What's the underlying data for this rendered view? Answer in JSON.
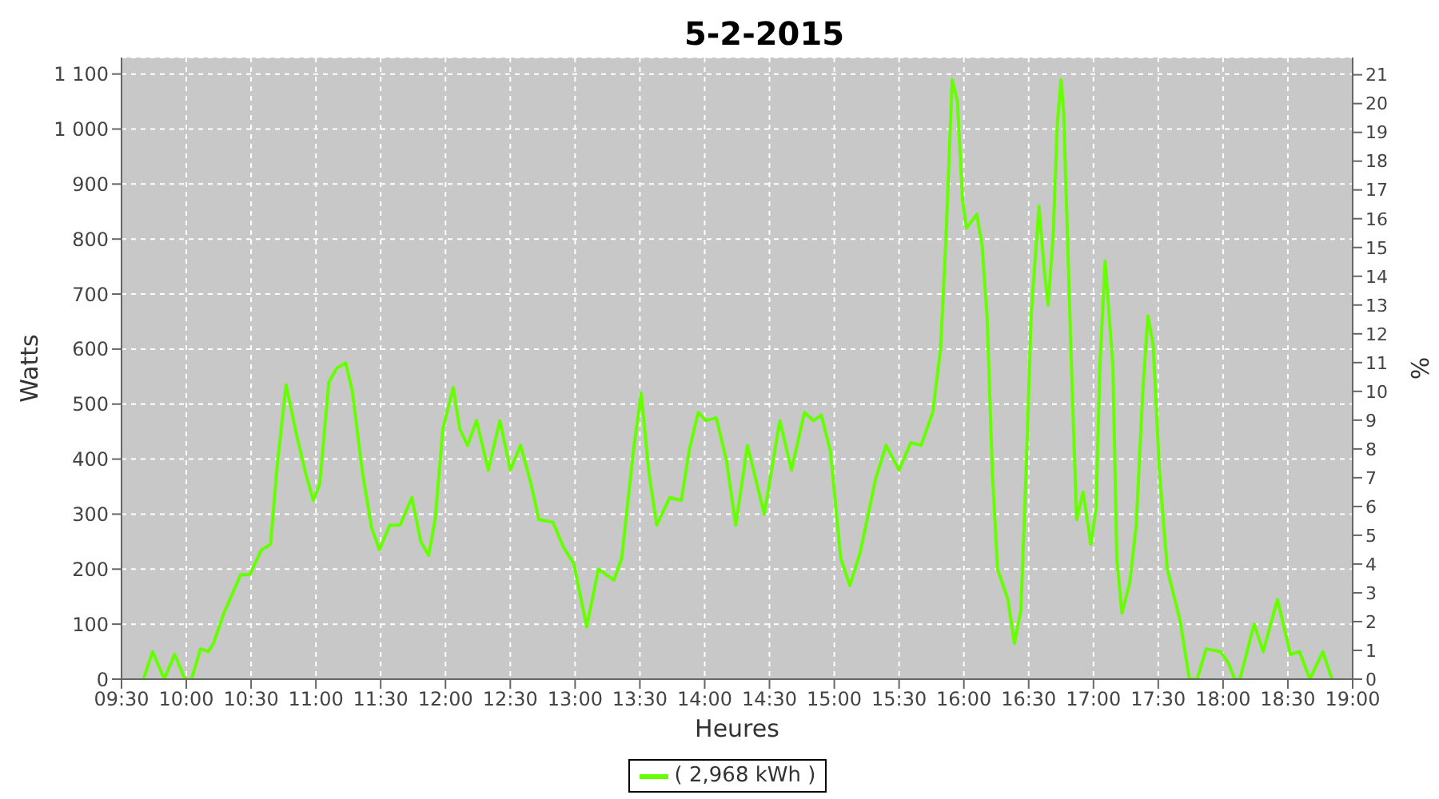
{
  "chart_data": {
    "type": "line",
    "title": "5-2-2015",
    "xlabel": "Heures",
    "ylabel": "Watts",
    "y2label": "%",
    "x": [
      9.67,
      9.74,
      9.83,
      9.91,
      9.99,
      10.04,
      10.11,
      10.17,
      10.21,
      10.29,
      10.42,
      10.49,
      10.58,
      10.65,
      10.7,
      10.77,
      10.85,
      10.92,
      10.98,
      11.03,
      11.1,
      11.16,
      11.23,
      11.28,
      11.36,
      11.43,
      11.49,
      11.57,
      11.65,
      11.74,
      11.81,
      11.87,
      11.92,
      11.98,
      12.06,
      12.11,
      12.17,
      12.24,
      12.33,
      12.42,
      12.5,
      12.58,
      12.66,
      12.72,
      12.83,
      12.91,
      12.99,
      13.09,
      13.18,
      13.3,
      13.36,
      13.45,
      13.51,
      13.57,
      13.63,
      13.73,
      13.82,
      13.88,
      13.95,
      14.01,
      14.09,
      14.17,
      14.24,
      14.33,
      14.46,
      14.58,
      14.67,
      14.77,
      14.84,
      14.9,
      14.97,
      15.05,
      15.12,
      15.2,
      15.32,
      15.4,
      15.5,
      15.59,
      15.67,
      15.73,
      15.76,
      15.82,
      15.86,
      15.91,
      15.95,
      15.99,
      16.02,
      16.1,
      16.14,
      16.18,
      16.22,
      16.26,
      16.34,
      16.39,
      16.44,
      16.48,
      16.52,
      16.58,
      16.62,
      16.65,
      16.69,
      16.72,
      16.75,
      16.77,
      16.83,
      16.87,
      16.92,
      16.98,
      17.02,
      17.05,
      17.09,
      17.15,
      17.18,
      17.22,
      17.28,
      17.33,
      17.38,
      17.42,
      17.46,
      17.51,
      17.57,
      17.67,
      17.74,
      17.8,
      17.87,
      17.98,
      18.04,
      18.09,
      18.13,
      18.24,
      18.31,
      18.42,
      18.52,
      18.59,
      18.67,
      18.77,
      18.84
    ],
    "series": [
      {
        "name": "( 2,968 kWh )",
        "color": "#66ff00",
        "values": [
          0,
          50,
          0,
          45,
          0,
          0,
          55,
          50,
          65,
          120,
          190,
          190,
          235,
          245,
          385,
          535,
          445,
          375,
          325,
          355,
          540,
          565,
          575,
          525,
          375,
          275,
          235,
          280,
          280,
          330,
          250,
          225,
          290,
          455,
          530,
          455,
          425,
          470,
          380,
          470,
          380,
          425,
          355,
          290,
          285,
          240,
          210,
          95,
          200,
          180,
          220,
          415,
          520,
          375,
          280,
          330,
          325,
          415,
          485,
          470,
          475,
          395,
          280,
          425,
          300,
          470,
          380,
          485,
          470,
          480,
          415,
          220,
          170,
          230,
          365,
          425,
          380,
          430,
          425,
          465,
          485,
          600,
          790,
          1090,
          1050,
          870,
          820,
          845,
          790,
          655,
          375,
          200,
          145,
          65,
          125,
          375,
          665,
          860,
          745,
          680,
          810,
          1005,
          1090,
          1030,
          570,
          290,
          340,
          245,
          310,
          570,
          760,
          570,
          220,
          120,
          175,
          280,
          520,
          660,
          610,
          375,
          200,
          105,
          0,
          0,
          55,
          50,
          30,
          0,
          0,
          100,
          50,
          145,
          45,
          50,
          0,
          50,
          0
        ]
      }
    ],
    "xlim": [
      9.5,
      19.0
    ],
    "xticks": [
      {
        "value": 9.5,
        "label": "09:30"
      },
      {
        "value": 10,
        "label": "10:00"
      },
      {
        "value": 10.5,
        "label": "10:30"
      },
      {
        "value": 11,
        "label": "11:00"
      },
      {
        "value": 11.5,
        "label": "11:30"
      },
      {
        "value": 12,
        "label": "12:00"
      },
      {
        "value": 12.5,
        "label": "12:30"
      },
      {
        "value": 13,
        "label": "13:00"
      },
      {
        "value": 13.5,
        "label": "13:30"
      },
      {
        "value": 14,
        "label": "14:00"
      },
      {
        "value": 14.5,
        "label": "14:30"
      },
      {
        "value": 15,
        "label": "15:00"
      },
      {
        "value": 15.5,
        "label": "15:30"
      },
      {
        "value": 16,
        "label": "16:00"
      },
      {
        "value": 16.5,
        "label": "16:30"
      },
      {
        "value": 17,
        "label": "17:00"
      },
      {
        "value": 17.5,
        "label": "17:30"
      },
      {
        "value": 18,
        "label": "18:00"
      },
      {
        "value": 18.5,
        "label": "18:30"
      },
      {
        "value": 19,
        "label": "19:00"
      }
    ],
    "ylim": [
      0,
      1130
    ],
    "yticks": [
      0,
      100,
      200,
      300,
      400,
      500,
      600,
      700,
      800,
      900,
      {
        "value": 1000,
        "label": "1 000"
      },
      {
        "value": 1100,
        "label": "1 100"
      }
    ],
    "y2lim": [
      0,
      21.6
    ],
    "y2ticks": [
      0,
      1,
      2,
      3,
      4,
      5,
      6,
      7,
      8,
      9,
      10,
      11,
      12,
      13,
      14,
      15,
      16,
      17,
      18,
      19,
      20,
      21
    ],
    "grid": true,
    "legend": "bottom"
  }
}
